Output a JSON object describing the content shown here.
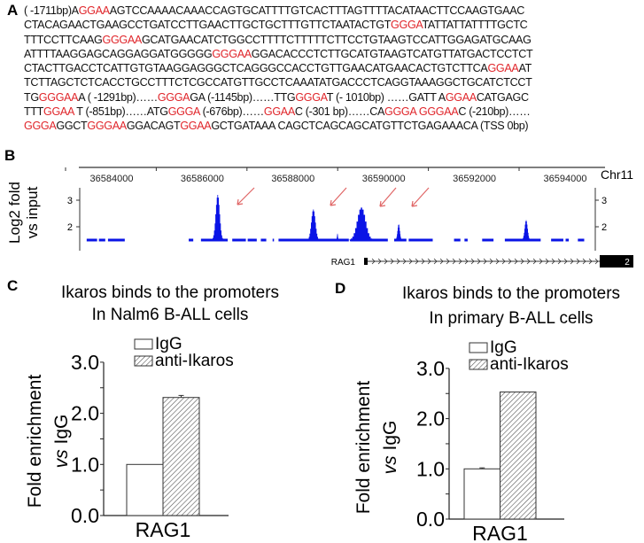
{
  "panels": {
    "a": "A",
    "b": "B",
    "c": "C",
    "d": "D"
  },
  "sequence": {
    "colors": {
      "motif": "#e0262b",
      "text": "#111111"
    },
    "lines": [
      [
        {
          "t": "( -1711bp)A"
        },
        {
          "t": "GGAA",
          "red": true
        },
        {
          "t": "AGTCCAAAACAAACCAGTGCATTTTGTCACTTTAGTTTTACATAACTTCCAAGTGAAC"
        }
      ],
      [
        {
          "t": "CTACAGAACTGAAGCCTGATCCTTGAACTTGCTGCTTTGTTCTAATACTGT"
        },
        {
          "t": "GGGA",
          "red": true
        },
        {
          "t": "TATTATTATTTTGCTC"
        }
      ],
      [
        {
          "t": "TTTCCTTCAAG"
        },
        {
          "t": "GGGAA",
          "red": true
        },
        {
          "t": "GCATGAACATCTGGCCTTTTCTTTTTCTTCCTGTAAGTCCATTGGAGATGCAAG"
        }
      ],
      [
        {
          "t": "ATTTTAAGGAGCAGGAGGATGGGGG"
        },
        {
          "t": "GGGAA",
          "red": true
        },
        {
          "t": "GGACACCCTCTTGCATGTAAGTCATGTTATGACTCCTCT"
        }
      ],
      [
        {
          "t": "CTACTTGACCTCATTGTGTAAGGAGGGCTCAGGGCCACCTGTTGAACATGAACACTGTCTTCA"
        },
        {
          "t": "GGAA",
          "red": true
        },
        {
          "t": "AT"
        }
      ],
      [
        {
          "t": "TCTTAGCTCTCACCTGCCTTTCTCGCCATGTTGCCTCAAATATGACCCTCAGGTAAAGGCTGCATCTCCT"
        }
      ],
      [
        {
          "t": "TG"
        },
        {
          "t": "GGGAA",
          "red": true
        },
        {
          "t": "A ( -1291bp)……"
        },
        {
          "t": "GGGA",
          "red": true
        },
        {
          "t": "GA (-1145bp)……TTG"
        },
        {
          "t": "GGGA",
          "red": true
        },
        {
          "t": "T (- 1010bp) ……GATT A"
        },
        {
          "t": "GGAA",
          "red": true
        },
        {
          "t": "CATGAGC"
        }
      ],
      [
        {
          "t": "TTT"
        },
        {
          "t": "GGAA",
          "red": true
        },
        {
          "t": " T (-851bp)……ATG"
        },
        {
          "t": "GGGA",
          "red": true
        },
        {
          "t": " (-676bp)……"
        },
        {
          "t": "GGAA",
          "red": true
        },
        {
          "t": "C (-301 bp)……CA"
        },
        {
          "t": "GGGA",
          "red": true
        },
        {
          "t": " "
        },
        {
          "t": "GGGAA",
          "red": true
        },
        {
          "t": "C (-210bp)……"
        }
      ],
      [
        {
          "t": "GGGA",
          "red": true
        },
        {
          "t": "GGCT"
        },
        {
          "t": "GGGAA",
          "red": true
        },
        {
          "t": "GGACAGT"
        },
        {
          "t": "GGAA",
          "red": true
        },
        {
          "t": "GCTGATAAA CAGCTCAGCAGCATGTTCTGAGAAACA (TSS 0bp)"
        }
      ]
    ]
  },
  "chart_data": [
    {
      "type": "area",
      "panel": "B",
      "ylabel_line1": "Log2 fold",
      "ylabel_line2": "vs input",
      "chromosome": "Chr11",
      "x_ticks": [
        "36584000",
        "36586000",
        "36588000",
        "36590000",
        "36592000",
        "36594000"
      ],
      "xlim": [
        36583500,
        36594500
      ],
      "y_ticks": [
        "3",
        "2"
      ],
      "ylim": [
        1.25,
        3.5
      ],
      "baseline": 1.5,
      "color": "#0a14e6",
      "coverage": [
        [
          36583450,
          36583680
        ],
        [
          36583720,
          36583860
        ],
        [
          36583920,
          36584290
        ],
        [
          36585700,
          36585800
        ],
        [
          36585970,
          36586560
        ],
        [
          36586660,
          36586960
        ],
        [
          36587000,
          36587200
        ],
        [
          36587290,
          36587410
        ],
        [
          36587550,
          36587580
        ],
        [
          36587680,
          36589230
        ],
        [
          36589290,
          36590090
        ],
        [
          36590230,
          36590500
        ],
        [
          36590550,
          36591080
        ],
        [
          36591550,
          36591690
        ],
        [
          36591780,
          36591850
        ],
        [
          36592170,
          36592420
        ],
        [
          36592670,
          36593460
        ],
        [
          36593690,
          36593960
        ],
        [
          36594010,
          36594080
        ],
        [
          36594280,
          36594420
        ]
      ],
      "peaks": [
        {
          "center": 36586340,
          "max": 3.2,
          "halfwidth": 120
        },
        {
          "center": 36588450,
          "max": 2.65,
          "halfwidth": 125
        },
        {
          "center": 36588980,
          "max": 1.75,
          "halfwidth": 30
        },
        {
          "center": 36589510,
          "max": 2.72,
          "halfwidth": 250
        },
        {
          "center": 36590330,
          "max": 2.1,
          "halfwidth": 70
        },
        {
          "center": 36593140,
          "max": 2.25,
          "halfwidth": 90
        }
      ],
      "arrow_color": "#e06666",
      "gene": {
        "name": "RAG1",
        "exon_label": "2"
      }
    },
    {
      "type": "bar",
      "panel": "C",
      "title_line1": "Ikaros binds to the promoters",
      "title_line2": "In Nalm6 B-ALL cells",
      "ylabel_line1": "Fold enrichment",
      "ylabel_vs": "vs",
      "ylabel_rest": " IgG",
      "categories": [
        "RAG1"
      ],
      "series": [
        {
          "name": "IgG",
          "values": [
            1.0
          ],
          "errors": [
            0.0
          ]
        },
        {
          "name": "anti-Ikaros",
          "values": [
            2.31
          ],
          "errors": [
            0.04
          ]
        }
      ],
      "y_ticks": [
        "0.0",
        "1.0",
        "2.0",
        "3.0"
      ],
      "ylim": [
        0,
        3.0
      ]
    },
    {
      "type": "bar",
      "panel": "D",
      "title_line1": "Ikaros binds to the promoters",
      "title_line2": "In primary  B-ALL cells",
      "ylabel_line1": "Fold enrichment",
      "ylabel_vs": "vs",
      "ylabel_rest": " IgG",
      "categories": [
        "RAG1"
      ],
      "series": [
        {
          "name": "IgG",
          "values": [
            1.0
          ],
          "errors": [
            0.02
          ]
        },
        {
          "name": "anti-Ikaros",
          "values": [
            2.53
          ],
          "errors": [
            0.0
          ]
        }
      ],
      "y_ticks": [
        "0.0",
        "1.0",
        "2.0",
        "3.0"
      ],
      "ylim": [
        0,
        3.0
      ]
    }
  ]
}
